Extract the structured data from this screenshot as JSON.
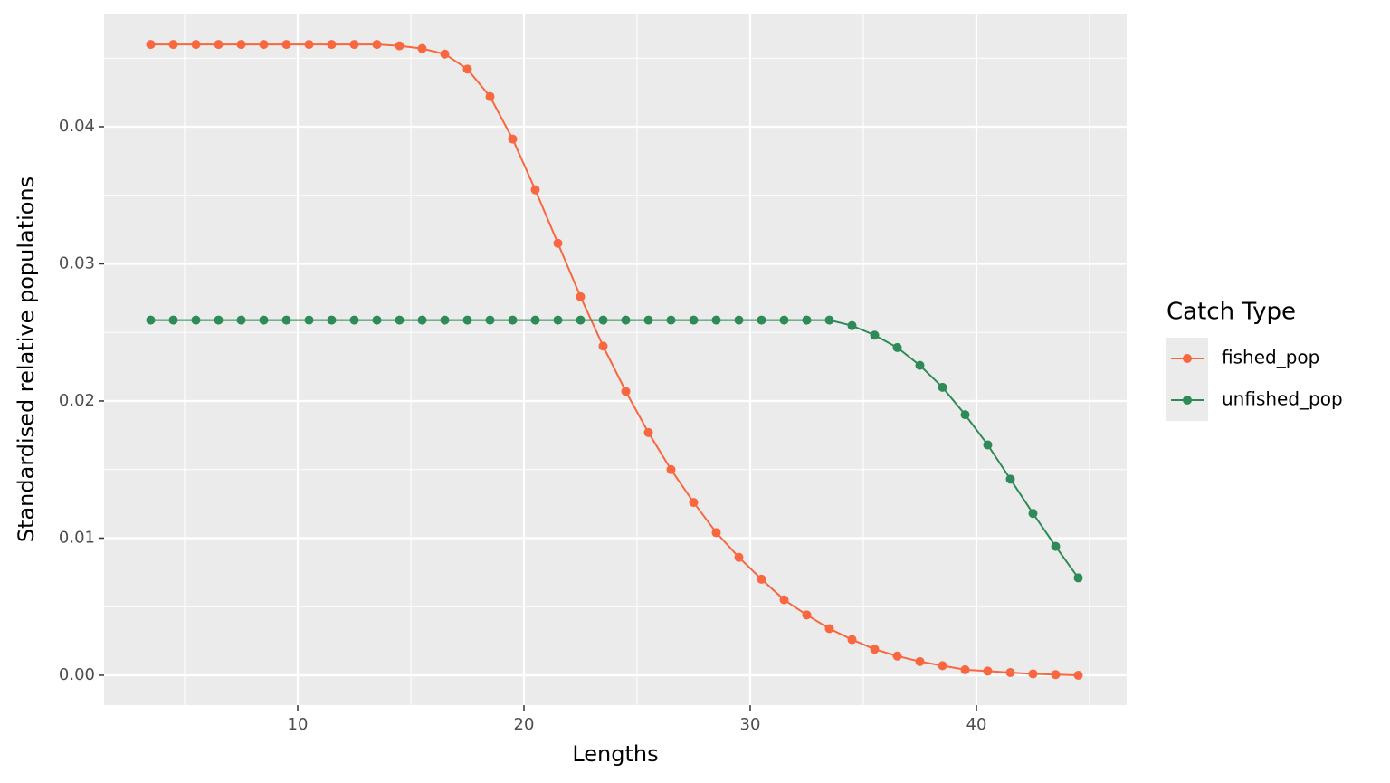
{
  "chart_data": {
    "type": "line",
    "x_label": "Lengths",
    "y_label": "Standardised relative populations",
    "legend_title": "Catch Type",
    "legend_position": "right",
    "grid": true,
    "x": [
      3.5,
      4.5,
      5.5,
      6.5,
      7.5,
      8.5,
      9.5,
      10.5,
      11.5,
      12.5,
      13.5,
      14.5,
      15.5,
      16.5,
      17.5,
      18.5,
      19.5,
      20.5,
      21.5,
      22.5,
      23.5,
      24.5,
      25.5,
      26.5,
      27.5,
      28.5,
      29.5,
      30.5,
      31.5,
      32.5,
      33.5,
      34.5,
      35.5,
      36.5,
      37.5,
      38.5,
      39.5,
      40.5,
      41.5,
      42.5,
      43.5,
      44.5
    ],
    "series": [
      {
        "name": "fished_pop",
        "color": "#f8673f",
        "values": [
          0.046,
          0.046,
          0.046,
          0.046,
          0.046,
          0.046,
          0.046,
          0.046,
          0.046,
          0.046,
          0.046,
          0.0459,
          0.0457,
          0.0453,
          0.0442,
          0.0422,
          0.0391,
          0.0354,
          0.0315,
          0.0276,
          0.024,
          0.0207,
          0.0177,
          0.015,
          0.0126,
          0.0104,
          0.0086,
          0.007,
          0.0055,
          0.0044,
          0.0034,
          0.0026,
          0.0019,
          0.0014,
          0.001,
          0.0007,
          0.0004,
          0.0003,
          0.0002,
          0.0001,
          5e-05,
          0
        ]
      },
      {
        "name": "unfished_pop",
        "color": "#2e8b57",
        "values": [
          0.0259,
          0.0259,
          0.0259,
          0.0259,
          0.0259,
          0.0259,
          0.0259,
          0.0259,
          0.0259,
          0.0259,
          0.0259,
          0.0259,
          0.0259,
          0.0259,
          0.0259,
          0.0259,
          0.0259,
          0.0259,
          0.0259,
          0.0259,
          0.0259,
          0.0259,
          0.0259,
          0.0259,
          0.0259,
          0.0259,
          0.0259,
          0.0259,
          0.0259,
          0.0259,
          0.0259,
          0.0255,
          0.0248,
          0.0239,
          0.0226,
          0.021,
          0.019,
          0.0168,
          0.0143,
          0.0118,
          0.0094,
          0.0071
        ]
      }
    ],
    "xlim": [
      1.44,
      46.64
    ],
    "xticks": [
      10,
      20,
      30,
      40
    ],
    "x_minor_breaks": [
      5,
      15,
      25,
      35,
      45
    ],
    "ylim": [
      -0.00218,
      0.04825
    ],
    "yticks": [
      {
        "value": 0,
        "label": "0.00"
      },
      0.01,
      0.02,
      0.03,
      0.04
    ],
    "y_minor_breaks": [
      0.005,
      0.015,
      0.025,
      0.035,
      0.045
    ]
  }
}
